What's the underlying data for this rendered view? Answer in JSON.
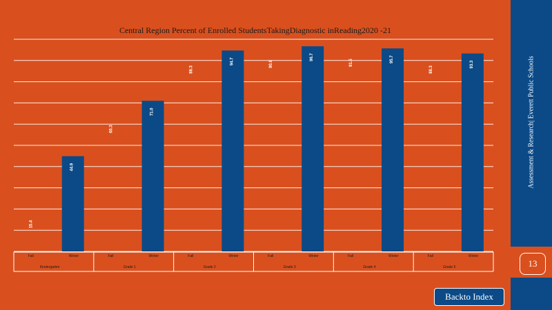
{
  "sidebar": {
    "org_text": "Assessment & Research|   Everett  Public Schools",
    "page_number": "13",
    "back_label": "Backto Index"
  },
  "colors": {
    "background": "#D9501E",
    "bar": "#0B4A87",
    "grid": "#FFFFFF",
    "label_text": "#FFFFFF"
  },
  "chart_data": {
    "type": "bar",
    "title": "Central Region Percent of Enrolled StudentsTakingDiagnostic  inReading2020    -21",
    "xlabel": "",
    "ylabel": "",
    "ylim": [
      0,
      100
    ],
    "grid": true,
    "groups": [
      {
        "name": "Kindergarten",
        "categories": [
          {
            "label": "Fall",
            "value": 15.4,
            "label_text": "15.4"
          },
          {
            "label": "Winter",
            "value": 44.9,
            "label_text": "44.9"
          }
        ]
      },
      {
        "name": "Grade    1",
        "categories": [
          {
            "label": "Fall",
            "value": 60.3,
            "label_text": "60.3"
          },
          {
            "label": "Winter",
            "value": 71.0,
            "label_text": "71.0"
          }
        ]
      },
      {
        "name": "Grade    2",
        "categories": [
          {
            "label": "Fall",
            "value": 88.3,
            "label_text": "88.3"
          },
          {
            "label": "Winter",
            "value": 94.7,
            "label_text": "94.7"
          }
        ]
      },
      {
        "name": "Grade    3",
        "categories": [
          {
            "label": "Fall",
            "value": 90.9,
            "label_text": "90.9"
          },
          {
            "label": "Winter",
            "value": 96.7,
            "label_text": "96.7"
          }
        ]
      },
      {
        "name": "Grade    4",
        "categories": [
          {
            "label": "Fall",
            "value": 91.5,
            "label_text": "91.5"
          },
          {
            "label": "Winter",
            "value": 95.7,
            "label_text": "95.7"
          }
        ]
      },
      {
        "name": "Grade    5",
        "categories": [
          {
            "label": "Fall",
            "value": 88.3,
            "label_text": "88.3"
          },
          {
            "label": "Winter",
            "value": 93.3,
            "label_text": "93.3"
          }
        ]
      }
    ]
  }
}
